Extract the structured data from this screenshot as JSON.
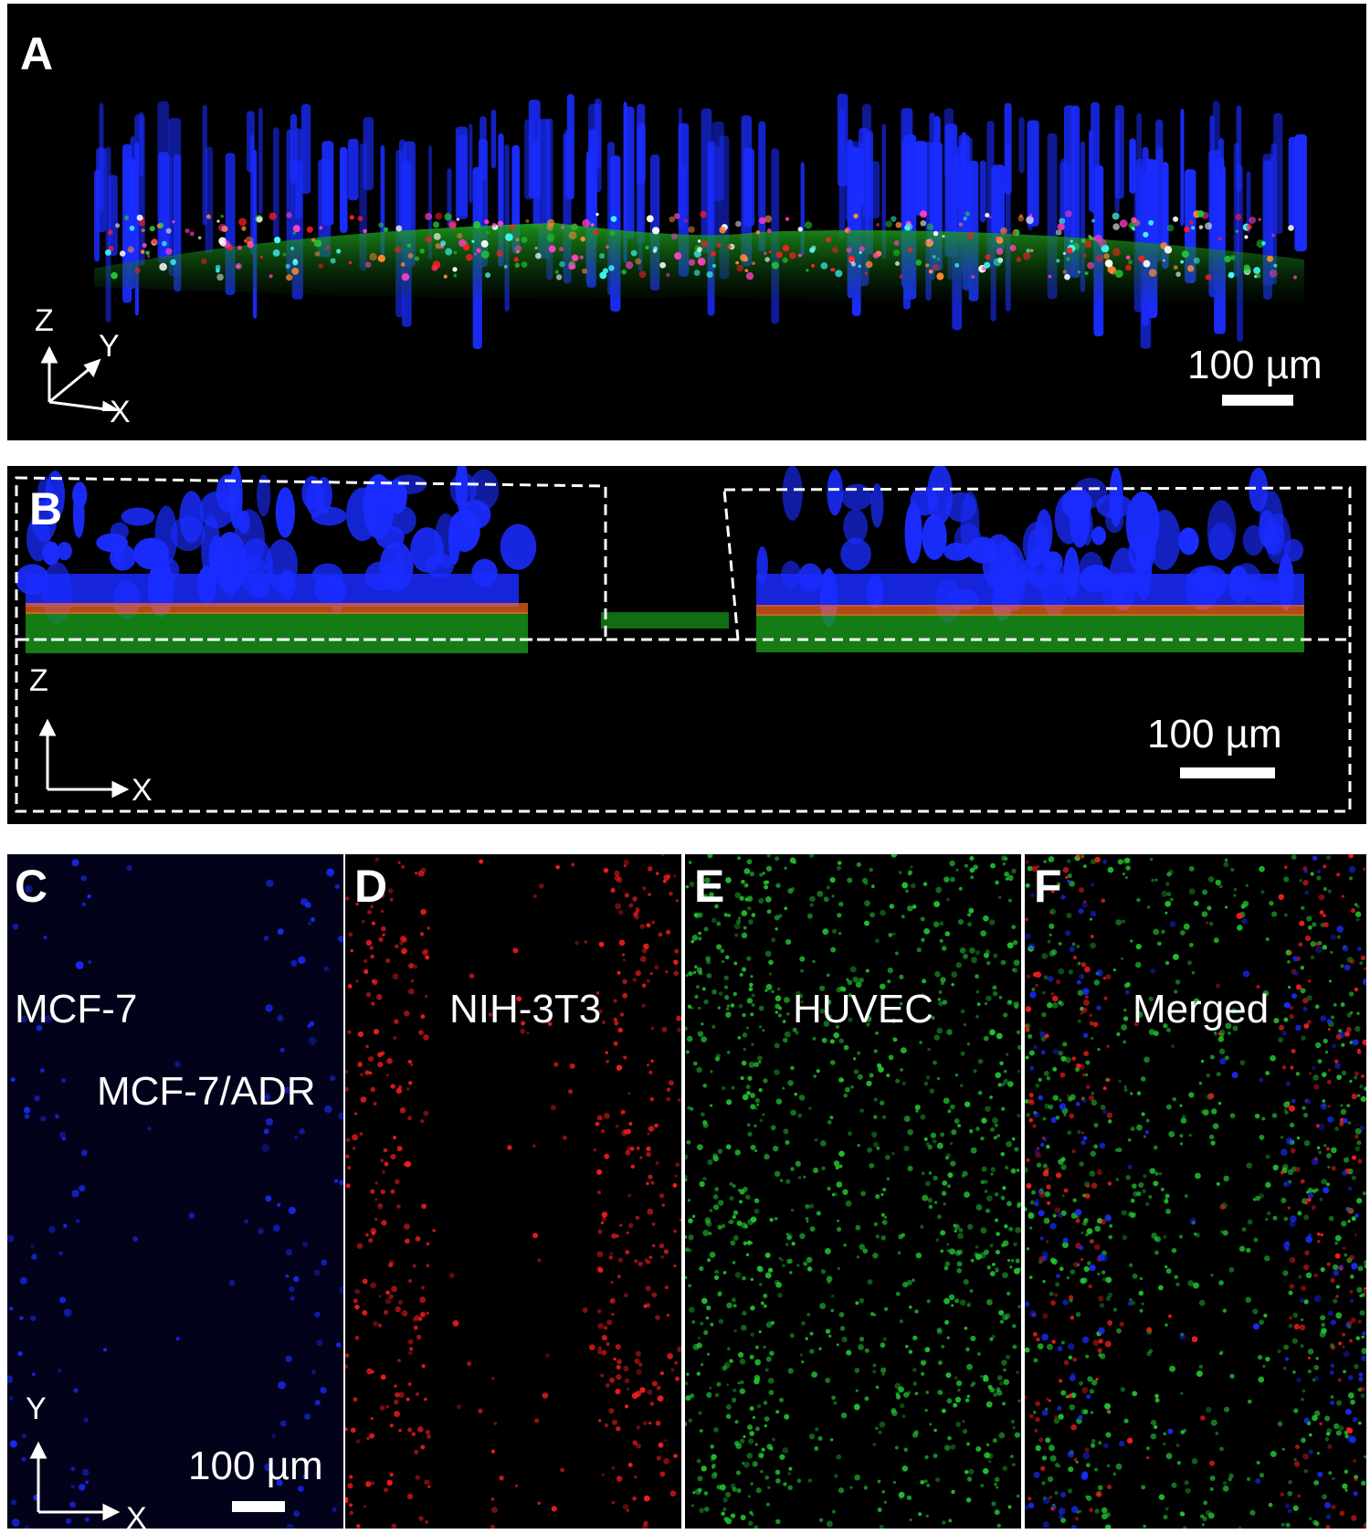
{
  "panels": {
    "a": {
      "letter": "A",
      "scale": "100 µm",
      "axes": {
        "z": "Z",
        "y": "Y",
        "x": "X"
      }
    },
    "b": {
      "letter": "B",
      "scale": "100 µm",
      "axes": {
        "z": "Z",
        "x": "X"
      }
    },
    "c": {
      "letter": "C",
      "label1": "MCF-7",
      "label2": "MCF-7/ADR",
      "scale": "100 µm",
      "axes": {
        "y": "Y",
        "x": "X"
      }
    },
    "d": {
      "letter": "D",
      "label": "NIH-3T3"
    },
    "e": {
      "letter": "E",
      "label": "HUVEC"
    },
    "f": {
      "letter": "F",
      "label": "Merged"
    }
  },
  "colors": {
    "nuclei": "#1a2cff",
    "fibroblast": "#ff1e1e",
    "endothelial": "#22c832",
    "white": "#ffffff"
  }
}
